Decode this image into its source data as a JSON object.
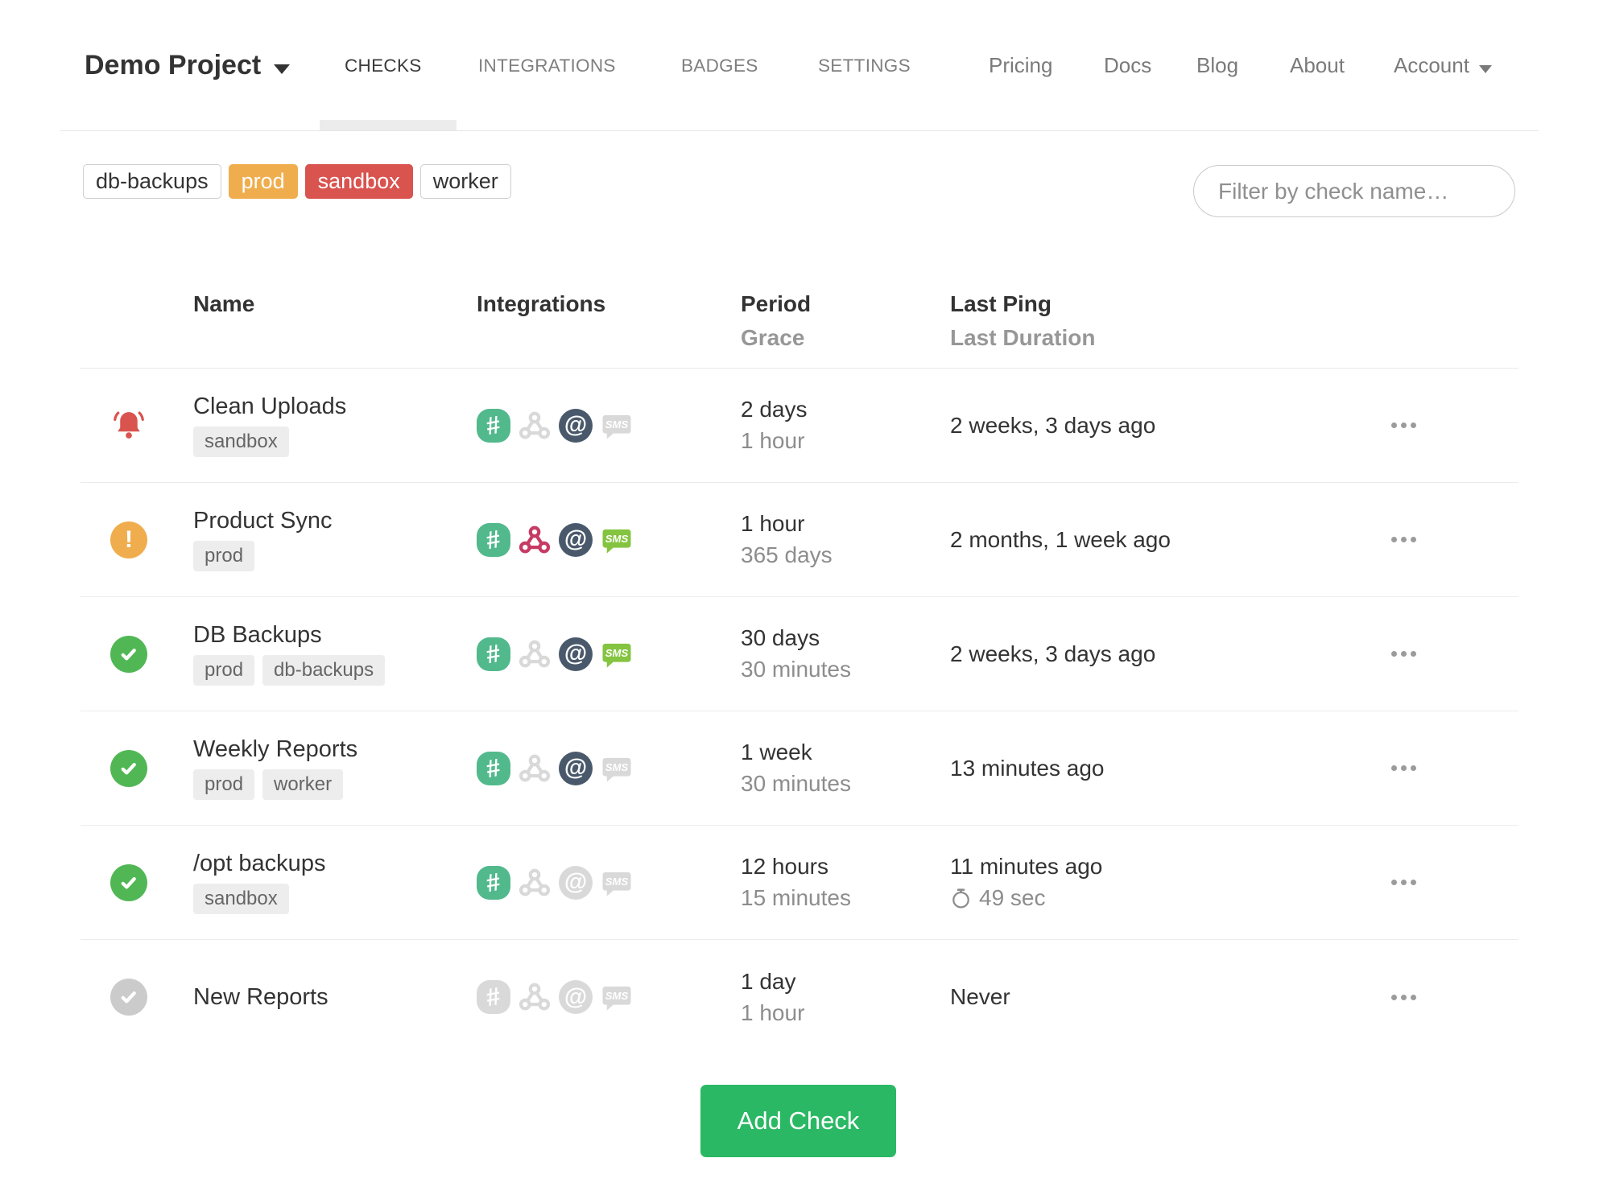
{
  "nav": {
    "project_name": "Demo Project",
    "tabs": [
      {
        "label": "CHECKS",
        "active": true
      },
      {
        "label": "INTEGRATIONS",
        "active": false
      },
      {
        "label": "BADGES",
        "active": false
      },
      {
        "label": "SETTINGS",
        "active": false
      }
    ],
    "links": [
      {
        "label": "Pricing"
      },
      {
        "label": "Docs"
      },
      {
        "label": "Blog"
      },
      {
        "label": "About"
      }
    ],
    "account_label": "Account"
  },
  "filters": {
    "tag_buttons": [
      {
        "label": "db-backups",
        "variant": "default"
      },
      {
        "label": "prod",
        "variant": "warning"
      },
      {
        "label": "sandbox",
        "variant": "danger"
      },
      {
        "label": "worker",
        "variant": "default"
      }
    ],
    "search_placeholder": "Filter by check name…"
  },
  "table": {
    "headers": {
      "name": "Name",
      "integrations": "Integrations",
      "period": "Period",
      "grace": "Grace",
      "last_ping": "Last Ping",
      "last_duration": "Last Duration"
    },
    "rows": [
      {
        "status": "down",
        "name": "Clean Uploads",
        "tags": [
          "sandbox"
        ],
        "integrations": [
          {
            "type": "slack",
            "active": true
          },
          {
            "type": "webhook",
            "active": false
          },
          {
            "type": "email",
            "active": true
          },
          {
            "type": "sms",
            "active": false
          }
        ],
        "period": "2 days",
        "grace": "1 hour",
        "last_ping": "2 weeks, 3 days ago",
        "last_duration": ""
      },
      {
        "status": "grace",
        "name": "Product Sync",
        "tags": [
          "prod"
        ],
        "integrations": [
          {
            "type": "slack",
            "active": true
          },
          {
            "type": "webhook",
            "active": true
          },
          {
            "type": "email",
            "active": true
          },
          {
            "type": "sms",
            "active": true
          }
        ],
        "period": "1 hour",
        "grace": "365 days",
        "last_ping": "2 months, 1 week ago",
        "last_duration": ""
      },
      {
        "status": "up",
        "name": "DB Backups",
        "tags": [
          "prod",
          "db-backups"
        ],
        "integrations": [
          {
            "type": "slack",
            "active": true
          },
          {
            "type": "webhook",
            "active": false
          },
          {
            "type": "email",
            "active": true
          },
          {
            "type": "sms",
            "active": true
          }
        ],
        "period": "30 days",
        "grace": "30 minutes",
        "last_ping": "2 weeks, 3 days ago",
        "last_duration": ""
      },
      {
        "status": "up",
        "name": "Weekly Reports",
        "tags": [
          "prod",
          "worker"
        ],
        "integrations": [
          {
            "type": "slack",
            "active": true
          },
          {
            "type": "webhook",
            "active": false
          },
          {
            "type": "email",
            "active": true
          },
          {
            "type": "sms",
            "active": false
          }
        ],
        "period": "1 week",
        "grace": "30 minutes",
        "last_ping": "13 minutes ago",
        "last_duration": ""
      },
      {
        "status": "up",
        "name": "/opt backups",
        "tags": [
          "sandbox"
        ],
        "integrations": [
          {
            "type": "slack",
            "active": true
          },
          {
            "type": "webhook",
            "active": false
          },
          {
            "type": "email",
            "active": false
          },
          {
            "type": "sms",
            "active": false
          }
        ],
        "period": "12 hours",
        "grace": "15 minutes",
        "last_ping": "11 minutes ago",
        "last_duration": "49 sec"
      },
      {
        "status": "new",
        "name": "New Reports",
        "tags": [],
        "integrations": [
          {
            "type": "slack",
            "active": false
          },
          {
            "type": "webhook",
            "active": false
          },
          {
            "type": "email",
            "active": false
          },
          {
            "type": "sms",
            "active": false
          }
        ],
        "period": "1 day",
        "grace": "1 hour",
        "last_ping": "Never",
        "last_duration": ""
      }
    ]
  },
  "add_check_label": "Add Check",
  "colors": {
    "status_down": "#d9534f",
    "status_grace": "#f0ad4e",
    "status_up": "#51b755",
    "status_new": "#cbcbcb",
    "tag_warning_bg": "#f0ad4e",
    "tag_danger_bg": "#d9534f",
    "slack_icon": "#52b98c",
    "webhook_icon": "#c73a63",
    "email_icon": "#49596b",
    "sms_icon": "#84c440",
    "add_button": "#2ab864"
  }
}
